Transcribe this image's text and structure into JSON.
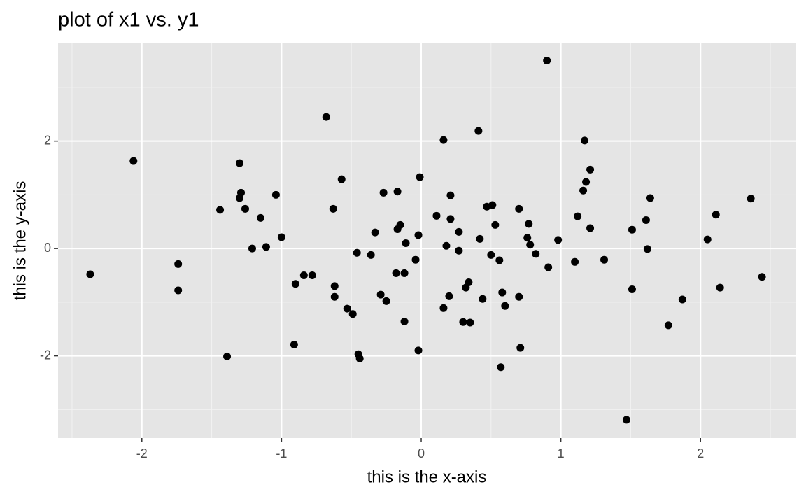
{
  "chart_data": {
    "type": "scatter",
    "title": "plot of x1 vs. y1",
    "x_label": "this is the x-axis",
    "y_label": "this is the y-axis",
    "color": "#000000",
    "panel_color": "#e5e5e5",
    "grid": true,
    "xlim": [
      -2.6,
      2.68
    ],
    "ylim": [
      -3.53,
      3.82
    ],
    "xticks": [
      -2,
      -1,
      0,
      1,
      2
    ],
    "yticks": [
      -2,
      0,
      2
    ],
    "xminor": [
      -2.5,
      -1.5,
      -0.5,
      0.5,
      1.5,
      2.5
    ],
    "yminor": [
      -3,
      -1,
      1,
      3
    ],
    "x": [
      -2.37,
      -2.06,
      -1.74,
      -1.74,
      -1.44,
      -1.39,
      -1.3,
      -1.29,
      -1.3,
      -1.26,
      -1.21,
      -1.15,
      -1.11,
      -1.04,
      -1.0,
      -0.91,
      -0.9,
      -0.84,
      -0.78,
      -0.68,
      -0.63,
      -0.62,
      -0.62,
      -0.57,
      -0.53,
      -0.49,
      -0.46,
      -0.45,
      -0.44,
      -0.36,
      -0.33,
      -0.29,
      -0.27,
      -0.25,
      -0.17,
      -0.18,
      -0.17,
      -0.15,
      -0.12,
      -0.12,
      -0.11,
      -0.04,
      -0.02,
      -0.02,
      -0.01,
      0.11,
      0.16,
      0.16,
      0.18,
      0.2,
      0.21,
      0.21,
      0.27,
      0.27,
      0.3,
      0.32,
      0.34,
      0.35,
      0.41,
      0.42,
      0.44,
      0.47,
      0.5,
      0.51,
      0.53,
      0.56,
      0.57,
      0.58,
      0.6,
      0.7,
      0.7,
      0.71,
      0.76,
      0.77,
      0.78,
      0.82,
      0.9,
      0.91,
      0.98,
      1.1,
      1.12,
      1.17,
      1.16,
      1.18,
      1.21,
      1.21,
      1.31,
      1.47,
      1.51,
      1.51,
      1.61,
      1.62,
      1.64,
      1.77,
      1.87,
      2.05,
      2.11,
      2.14,
      2.36,
      2.44
    ],
    "values": [
      -0.48,
      1.63,
      -0.29,
      -0.78,
      0.72,
      -2.01,
      1.59,
      1.04,
      0.94,
      0.74,
      0.0,
      0.57,
      0.03,
      1.0,
      0.21,
      -1.79,
      -0.66,
      -0.5,
      -0.5,
      2.45,
      0.74,
      -0.7,
      -0.9,
      1.29,
      -1.12,
      -1.22,
      -0.08,
      -1.97,
      -2.05,
      -0.12,
      0.3,
      -0.86,
      1.04,
      -0.98,
      1.06,
      -0.46,
      0.36,
      0.44,
      -0.46,
      -1.36,
      0.1,
      -0.21,
      0.25,
      -1.9,
      1.33,
      0.61,
      2.02,
      -1.11,
      0.05,
      -0.89,
      0.99,
      0.55,
      0.31,
      -0.04,
      -1.37,
      -0.73,
      -0.63,
      -1.38,
      2.19,
      0.18,
      -0.94,
      0.78,
      -0.12,
      0.81,
      0.44,
      -0.22,
      -2.21,
      -0.82,
      -1.07,
      0.74,
      -0.9,
      -1.85,
      0.2,
      0.46,
      0.07,
      -0.1,
      3.5,
      -0.35,
      0.16,
      -0.25,
      0.6,
      2.01,
      1.08,
      1.24,
      0.38,
      1.47,
      -0.21,
      -3.19,
      0.35,
      -0.76,
      0.53,
      -0.01,
      0.94,
      -1.43,
      -0.95,
      0.17,
      0.63,
      -0.73,
      0.93,
      -0.53
    ]
  }
}
